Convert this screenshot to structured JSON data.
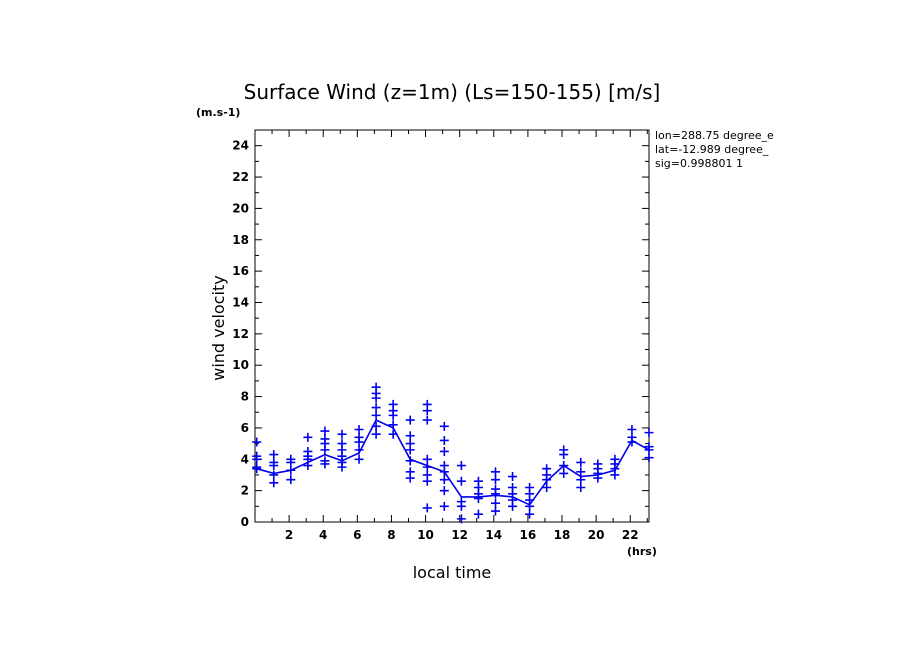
{
  "chart_data": {
    "type": "scatter",
    "title": "Surface Wind (z=1m) (Ls=150-155) [m/s]",
    "ylabel": "wind velocity",
    "y_unit": "(m.s-1)",
    "xlabel": "local time",
    "x_unit": "(hrs)",
    "xlim": [
      0,
      23.1
    ],
    "ylim": [
      0,
      25
    ],
    "x_ticks": [
      2,
      4,
      6,
      8,
      10,
      12,
      14,
      16,
      18,
      20,
      22
    ],
    "y_ticks": [
      0,
      2,
      4,
      6,
      8,
      10,
      12,
      14,
      16,
      18,
      20,
      22,
      24
    ],
    "info_lines": [
      "lon=288.75 degree_e",
      "lat=-12.989 degree_",
      "sig=0.998801 1"
    ],
    "color": "#0000ee",
    "mean_line": {
      "x": [
        0.1,
        1.1,
        2.1,
        3.1,
        4.1,
        5.1,
        6.1,
        7.1,
        8.1,
        9.1,
        10.1,
        11.1,
        12.1,
        13.1,
        14.1,
        15.1,
        16.1,
        17.1,
        18.1,
        19.1,
        20.1,
        21.1,
        22.1,
        23.1
      ],
      "y": [
        3.4,
        3.1,
        3.3,
        3.8,
        4.3,
        3.9,
        4.4,
        6.5,
        6.0,
        4.0,
        3.6,
        3.2,
        1.6,
        1.6,
        1.7,
        1.6,
        1.1,
        2.6,
        3.6,
        2.9,
        3.0,
        3.3,
        5.2,
        4.6
      ]
    },
    "samples": [
      {
        "x": 0.1,
        "y": [
          3.4,
          3.5,
          4.0,
          4.2,
          5.1
        ]
      },
      {
        "x": 1.1,
        "y": [
          2.5,
          3.0,
          3.6,
          3.8,
          4.3
        ]
      },
      {
        "x": 2.1,
        "y": [
          2.7,
          3.3,
          3.8,
          4.0
        ]
      },
      {
        "x": 3.1,
        "y": [
          3.6,
          4.0,
          4.2,
          4.5,
          5.4
        ]
      },
      {
        "x": 4.1,
        "y": [
          3.7,
          3.9,
          4.6,
          5.0,
          5.3,
          5.8
        ]
      },
      {
        "x": 5.1,
        "y": [
          3.5,
          3.8,
          4.2,
          4.6,
          5.0,
          5.6
        ]
      },
      {
        "x": 6.1,
        "y": [
          4.0,
          4.6,
          5.1,
          5.4,
          5.9
        ]
      },
      {
        "x": 7.1,
        "y": [
          5.6,
          6.1,
          6.8,
          7.3,
          7.9,
          8.2,
          8.6
        ]
      },
      {
        "x": 8.1,
        "y": [
          5.6,
          6.2,
          6.8,
          7.1,
          7.5
        ]
      },
      {
        "x": 9.1,
        "y": [
          2.8,
          3.2,
          3.9,
          4.6,
          5.0,
          5.5,
          6.5
        ]
      },
      {
        "x": 10.1,
        "y": [
          0.9,
          2.6,
          3.0,
          3.5,
          4.0,
          6.5,
          7.1,
          7.5
        ]
      },
      {
        "x": 11.1,
        "y": [
          1.0,
          2.0,
          2.7,
          3.2,
          3.6,
          4.5,
          5.2,
          6.1
        ]
      },
      {
        "x": 12.1,
        "y": [
          0.2,
          1.0,
          1.3,
          2.6,
          3.6
        ]
      },
      {
        "x": 13.1,
        "y": [
          0.5,
          1.5,
          1.8,
          2.2,
          2.6
        ]
      },
      {
        "x": 14.1,
        "y": [
          0.7,
          1.2,
          1.8,
          2.1,
          2.7,
          3.2
        ]
      },
      {
        "x": 15.1,
        "y": [
          1.0,
          1.4,
          1.8,
          2.2,
          2.9
        ]
      },
      {
        "x": 16.1,
        "y": [
          0.5,
          1.0,
          1.4,
          1.8,
          2.2
        ]
      },
      {
        "x": 17.1,
        "y": [
          2.2,
          2.7,
          3.0,
          3.4
        ]
      },
      {
        "x": 18.1,
        "y": [
          3.1,
          3.6,
          4.3,
          4.6
        ]
      },
      {
        "x": 19.1,
        "y": [
          2.2,
          2.7,
          3.2,
          3.8
        ]
      },
      {
        "x": 20.1,
        "y": [
          2.8,
          3.1,
          3.4,
          3.7
        ]
      },
      {
        "x": 21.1,
        "y": [
          3.0,
          3.4,
          3.7,
          4.0
        ]
      },
      {
        "x": 22.1,
        "y": [
          5.1,
          5.4,
          5.9
        ]
      },
      {
        "x": 23.1,
        "y": [
          4.1,
          4.6,
          4.8,
          5.7
        ]
      }
    ]
  }
}
